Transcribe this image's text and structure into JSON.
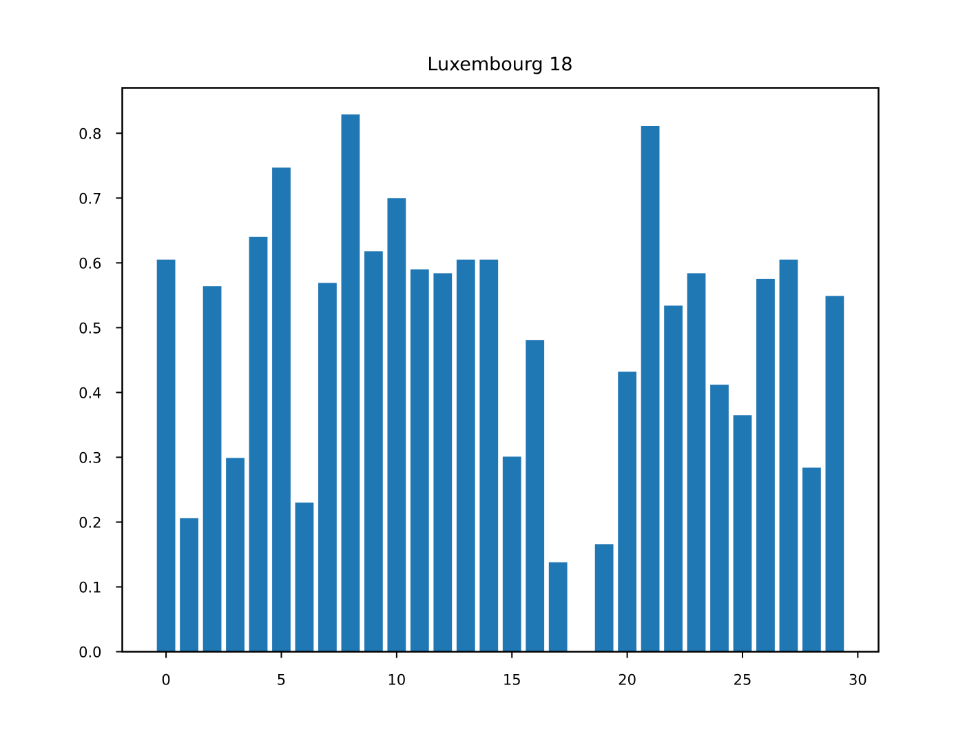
{
  "chart_data": {
    "type": "bar",
    "title": "Luxembourg 18",
    "xlabel": "",
    "ylabel": "",
    "x": [
      0,
      1,
      2,
      3,
      4,
      5,
      6,
      7,
      8,
      9,
      10,
      11,
      12,
      13,
      14,
      15,
      16,
      17,
      18,
      19,
      20,
      21,
      22,
      23,
      24,
      25,
      26,
      27,
      28,
      29
    ],
    "values": [
      0.605,
      0.206,
      0.564,
      0.299,
      0.64,
      0.747,
      0.23,
      0.569,
      0.829,
      0.618,
      0.7,
      0.59,
      0.584,
      0.605,
      0.605,
      0.301,
      0.481,
      0.138,
      0.0,
      0.166,
      0.432,
      0.811,
      0.534,
      0.584,
      0.412,
      0.365,
      0.575,
      0.605,
      0.284,
      0.549
    ],
    "xlim": [
      -1.9,
      30.9
    ],
    "ylim": [
      0,
      0.87
    ],
    "xticks": [
      0,
      5,
      10,
      15,
      20,
      25,
      30
    ],
    "yticks": [
      0.0,
      0.1,
      0.2,
      0.3,
      0.4,
      0.5,
      0.6,
      0.7,
      0.8
    ],
    "xtick_labels": [
      "0",
      "5",
      "10",
      "15",
      "20",
      "25",
      "30"
    ],
    "ytick_labels": [
      "0.0",
      "0.1",
      "0.2",
      "0.3",
      "0.4",
      "0.5",
      "0.6",
      "0.7",
      "0.8"
    ],
    "bar_color": "#1f77b4",
    "grid": false,
    "legend": "none"
  }
}
